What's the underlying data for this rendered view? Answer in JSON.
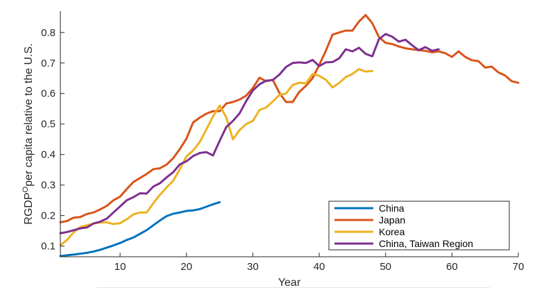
{
  "chart_data": {
    "type": "line",
    "title": "",
    "xlabel": "Year",
    "ylabel_main": "RGDP",
    "ylabel_superscript": "O",
    "ylabel_rest": "per capita relative to the U.S.",
    "xlim": [
      1,
      70
    ],
    "ylim": [
      0.065,
      0.87
    ],
    "xticks": [
      10,
      20,
      30,
      40,
      50,
      60,
      70
    ],
    "xtick_labels": [
      "10",
      "20",
      "30",
      "40",
      "50",
      "60",
      "70"
    ],
    "yticks": [
      0.1,
      0.2,
      0.3,
      0.4,
      0.5,
      0.6,
      0.7,
      0.8
    ],
    "ytick_labels": [
      "0.1",
      "0.2",
      "0.3",
      "0.4",
      "0.5",
      "0.6",
      "0.7",
      "0.8"
    ],
    "legend_position": "bottom-right",
    "series": [
      {
        "name": "China",
        "color": "#0072BD",
        "x": [
          1,
          2,
          3,
          4,
          5,
          6,
          7,
          8,
          9,
          10,
          11,
          12,
          13,
          14,
          15,
          16,
          17,
          18,
          19,
          20,
          21,
          22,
          23,
          24,
          25
        ],
        "y": [
          0.067,
          0.07,
          0.072,
          0.075,
          0.078,
          0.082,
          0.088,
          0.095,
          0.102,
          0.11,
          0.12,
          0.128,
          0.14,
          0.152,
          0.168,
          0.184,
          0.198,
          0.206,
          0.21,
          0.215,
          0.217,
          0.221,
          0.229,
          0.237,
          0.244
        ]
      },
      {
        "name": "Japan",
        "color": "#D95319",
        "x": [
          1,
          2,
          3,
          4,
          5,
          6,
          7,
          8,
          9,
          10,
          11,
          12,
          13,
          14,
          15,
          16,
          17,
          18,
          19,
          20,
          21,
          22,
          23,
          24,
          25,
          26,
          27,
          28,
          29,
          30,
          31,
          32,
          33,
          34,
          35,
          36,
          37,
          38,
          39,
          40,
          41,
          42,
          43,
          44,
          45,
          46,
          47,
          48,
          49,
          50,
          51,
          52,
          53,
          54,
          55,
          56,
          57,
          58,
          59,
          60,
          61,
          62,
          63,
          64,
          65,
          66,
          67,
          68,
          69,
          70
        ],
        "y": [
          0.178,
          0.182,
          0.193,
          0.195,
          0.205,
          0.21,
          0.22,
          0.232,
          0.25,
          0.262,
          0.287,
          0.31,
          0.323,
          0.336,
          0.352,
          0.355,
          0.367,
          0.388,
          0.418,
          0.452,
          0.505,
          0.521,
          0.534,
          0.542,
          0.542,
          0.567,
          0.572,
          0.58,
          0.593,
          0.618,
          0.652,
          0.64,
          0.645,
          0.602,
          0.572,
          0.572,
          0.605,
          0.625,
          0.65,
          0.693,
          0.74,
          0.793,
          0.8,
          0.806,
          0.806,
          0.836,
          0.857,
          0.83,
          0.785,
          0.766,
          0.762,
          0.754,
          0.748,
          0.745,
          0.742,
          0.74,
          0.735,
          0.738,
          0.732,
          0.72,
          0.738,
          0.72,
          0.709,
          0.706,
          0.685,
          0.688,
          0.669,
          0.659,
          0.64,
          0.635
        ]
      },
      {
        "name": "Korea",
        "color": "#EDB120",
        "x": [
          1,
          2,
          3,
          4,
          5,
          6,
          7,
          8,
          9,
          10,
          11,
          12,
          13,
          14,
          15,
          16,
          17,
          18,
          19,
          20,
          21,
          22,
          23,
          24,
          25,
          26,
          27,
          28,
          29,
          30,
          31,
          32,
          33,
          34,
          35,
          36,
          37,
          38,
          39,
          40,
          41,
          42,
          43,
          44,
          45,
          46,
          47,
          48
        ],
        "y": [
          0.103,
          0.12,
          0.145,
          0.162,
          0.168,
          0.174,
          0.177,
          0.178,
          0.172,
          0.175,
          0.188,
          0.204,
          0.21,
          0.21,
          0.24,
          0.268,
          0.292,
          0.314,
          0.352,
          0.394,
          0.413,
          0.441,
          0.482,
          0.525,
          0.56,
          0.522,
          0.45,
          0.48,
          0.5,
          0.51,
          0.546,
          0.554,
          0.574,
          0.595,
          0.6,
          0.628,
          0.635,
          0.633,
          0.664,
          0.658,
          0.645,
          0.62,
          0.634,
          0.654,
          0.664,
          0.68,
          0.672,
          0.674
        ]
      },
      {
        "name": "China, Taiwan Region",
        "color": "#7E2F8E",
        "x": [
          1,
          2,
          3,
          4,
          5,
          6,
          7,
          8,
          9,
          10,
          11,
          12,
          13,
          14,
          15,
          16,
          17,
          18,
          19,
          20,
          21,
          22,
          23,
          24,
          25,
          26,
          27,
          28,
          29,
          30,
          31,
          32,
          33,
          34,
          35,
          36,
          37,
          38,
          39,
          40,
          41,
          42,
          43,
          44,
          45,
          46,
          47,
          48,
          49,
          50,
          51,
          52,
          53,
          54,
          55,
          56,
          57,
          58
        ],
        "y": [
          0.142,
          0.146,
          0.152,
          0.158,
          0.161,
          0.174,
          0.18,
          0.19,
          0.21,
          0.23,
          0.25,
          0.26,
          0.273,
          0.272,
          0.295,
          0.306,
          0.325,
          0.342,
          0.368,
          0.378,
          0.395,
          0.405,
          0.408,
          0.397,
          0.445,
          0.49,
          0.51,
          0.535,
          0.575,
          0.61,
          0.63,
          0.642,
          0.644,
          0.662,
          0.687,
          0.7,
          0.702,
          0.7,
          0.71,
          0.69,
          0.702,
          0.703,
          0.715,
          0.745,
          0.738,
          0.75,
          0.73,
          0.722,
          0.778,
          0.795,
          0.786,
          0.77,
          0.776,
          0.758,
          0.742,
          0.752,
          0.74,
          0.745
        ]
      }
    ]
  }
}
